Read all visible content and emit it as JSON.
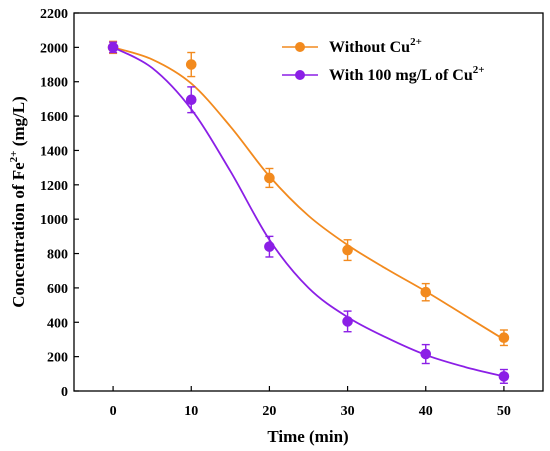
{
  "chart_data": {
    "type": "line",
    "title": "",
    "xlabel": "Time (min)",
    "ylabel": {
      "base": "Concentration of Fe",
      "sup": "2+",
      "unit": " (mg/L)"
    },
    "xlim": [
      -5,
      55
    ],
    "ylim": [
      0,
      2200
    ],
    "xticks": [
      "0",
      "10",
      "20",
      "30",
      "40",
      "50"
    ],
    "yticks": [
      "0",
      "200",
      "400",
      "600",
      "800",
      "1000",
      "1200",
      "1400",
      "1600",
      "1800",
      "2000",
      "2200"
    ],
    "x": [
      0,
      10,
      20,
      30,
      40,
      50
    ],
    "grid": false,
    "legend_position": "top-right",
    "series": [
      {
        "name": {
          "base": "Without Cu",
          "sup": "2+"
        },
        "color": "#F28A1E",
        "values": [
          2000,
          1900,
          1240,
          820,
          575,
          310
        ],
        "errors": [
          35,
          70,
          55,
          60,
          50,
          45
        ],
        "curve": [
          [
            0,
            2000
          ],
          [
            5,
            1930
          ],
          [
            10,
            1790
          ],
          [
            15,
            1540
          ],
          [
            20,
            1250
          ],
          [
            25,
            1020
          ],
          [
            30,
            850
          ],
          [
            35,
            710
          ],
          [
            40,
            580
          ],
          [
            45,
            440
          ],
          [
            50,
            300
          ]
        ]
      },
      {
        "name": {
          "base": "With 100 mg/L of Cu",
          "sup": "2+"
        },
        "color": "#8B1FE6",
        "values": [
          2000,
          1695,
          840,
          405,
          215,
          85
        ],
        "errors": [
          30,
          75,
          60,
          60,
          55,
          40
        ],
        "curve": [
          [
            0,
            2000
          ],
          [
            5,
            1880
          ],
          [
            10,
            1640
          ],
          [
            15,
            1280
          ],
          [
            20,
            880
          ],
          [
            25,
            600
          ],
          [
            30,
            430
          ],
          [
            35,
            310
          ],
          [
            40,
            210
          ],
          [
            45,
            140
          ],
          [
            50,
            85
          ]
        ]
      }
    ]
  }
}
